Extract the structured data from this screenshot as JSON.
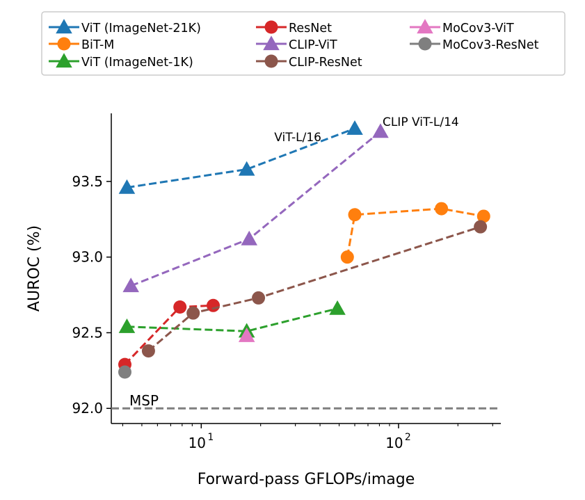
{
  "chart_data": {
    "type": "line",
    "xlabel": "Forward-pass GFLOPs/image",
    "ylabel": "AUROC (%)",
    "xscale": "log",
    "xlim": [
      3.5,
      330
    ],
    "ylim": [
      91.9,
      93.95
    ],
    "xticks": [
      {
        "value": 10,
        "base": "10",
        "exp": "1"
      },
      {
        "value": 100,
        "base": "10",
        "exp": "2"
      }
    ],
    "yticks": [
      {
        "value": 92.0,
        "label": "92.0"
      },
      {
        "value": 92.5,
        "label": "92.5"
      },
      {
        "value": 93.0,
        "label": "93.0"
      },
      {
        "value": 93.5,
        "label": "93.5"
      }
    ],
    "grid": false,
    "legend_position": "top",
    "baseline": {
      "label": "MSP",
      "value": 92.0,
      "color": "#7f7f7f"
    },
    "series": [
      {
        "name": "ViT (ImageNet-21K)",
        "color": "#1f77b4",
        "marker": "triangle",
        "x": [
          4.2,
          17,
          60
        ],
        "y": [
          93.46,
          93.58,
          93.85
        ]
      },
      {
        "name": "BiT-M",
        "color": "#ff7f0e",
        "marker": "circle",
        "x": [
          55,
          60,
          165,
          270
        ],
        "y": [
          93.0,
          93.28,
          93.32,
          93.27
        ]
      },
      {
        "name": "ViT (ImageNet-1K)",
        "color": "#2ca02c",
        "marker": "triangle",
        "x": [
          4.2,
          17,
          49
        ],
        "y": [
          92.54,
          92.51,
          92.66
        ]
      },
      {
        "name": "ResNet",
        "color": "#d62728",
        "marker": "circle",
        "x": [
          4.1,
          7.8,
          11.5
        ],
        "y": [
          92.29,
          92.67,
          92.68
        ]
      },
      {
        "name": "CLIP-ViT",
        "color": "#9467bd",
        "marker": "triangle",
        "x": [
          4.4,
          17.5,
          81
        ],
        "y": [
          92.81,
          93.12,
          93.83
        ]
      },
      {
        "name": "CLIP-ResNet",
        "color": "#8c564b",
        "marker": "circle",
        "x": [
          5.4,
          9.1,
          19.5,
          260
        ],
        "y": [
          92.38,
          92.63,
          92.73,
          93.2
        ]
      },
      {
        "name": "MoCov3-ViT",
        "color": "#e377c2",
        "marker": "triangle",
        "x": [
          17
        ],
        "y": [
          92.48
        ]
      },
      {
        "name": "MoCov3-ResNet",
        "color": "#7f7f7f",
        "marker": "circle",
        "x": [
          4.1
        ],
        "y": [
          92.24
        ]
      }
    ],
    "annotations": [
      {
        "text": "ViT-L/16",
        "x": 60,
        "y": 93.85
      },
      {
        "text": "CLIP ViT-L/14",
        "x": 81,
        "y": 93.83
      }
    ]
  }
}
